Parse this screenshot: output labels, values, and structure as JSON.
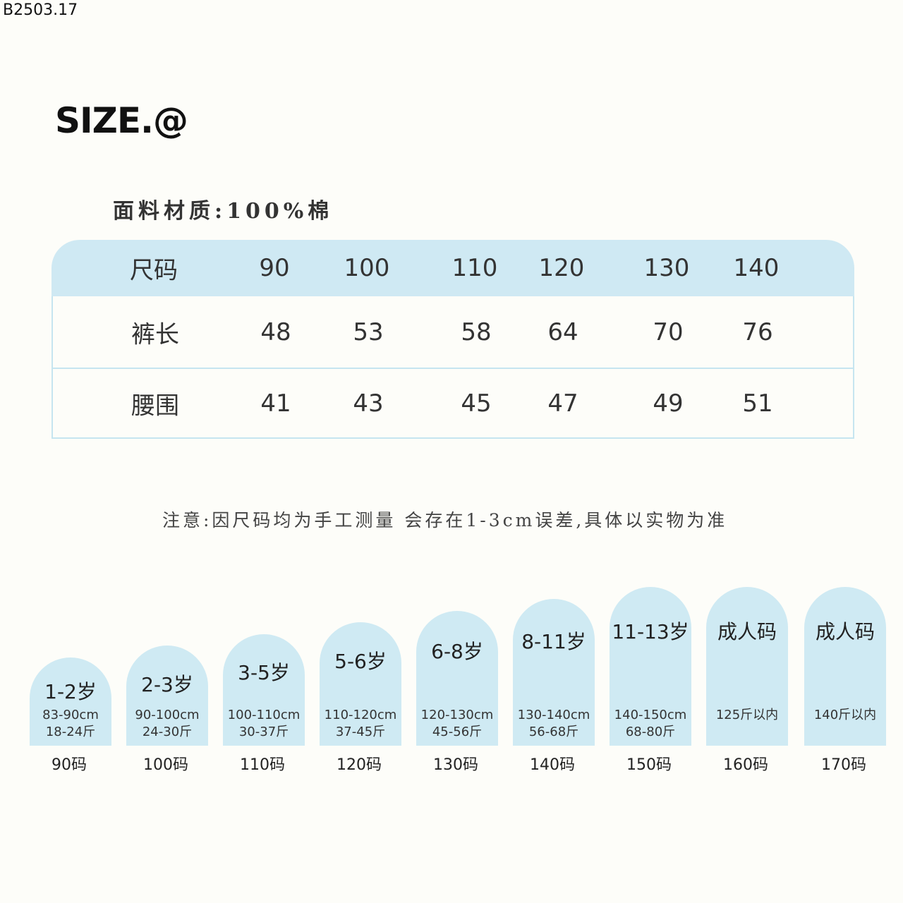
{
  "code": "B2503.17",
  "title": "SIZE.@",
  "material": "面料材质:100%棉",
  "table": {
    "header": [
      "尺码",
      "90",
      "100",
      "110",
      "120",
      "130",
      "140"
    ],
    "rows": [
      [
        "裤长",
        "48",
        "53",
        "58",
        "64",
        "70",
        "76"
      ],
      [
        "腰围",
        "41",
        "43",
        "45",
        "47",
        "49",
        "51"
      ]
    ]
  },
  "note": "注意:因尺码均为手工测量 会存在1-3cm误差,具体以实物为准",
  "cards": [
    {
      "age": "1-2岁",
      "height": "83-90cm",
      "weight": "18-24斤",
      "size": "90码"
    },
    {
      "age": "2-3岁",
      "height": "90-100cm",
      "weight": "24-30斤",
      "size": "100码"
    },
    {
      "age": "3-5岁",
      "height": "100-110cm",
      "weight": "30-37斤",
      "size": "110码"
    },
    {
      "age": "5-6岁",
      "height": "110-120cm",
      "weight": "37-45斤",
      "size": "120码"
    },
    {
      "age": "6-8岁",
      "height": "120-130cm",
      "weight": "45-56斤",
      "size": "130码"
    },
    {
      "age": "8-11岁",
      "height": "130-140cm",
      "weight": "56-68斤",
      "size": "140码"
    },
    {
      "age": "11-13岁",
      "height": "140-150cm",
      "weight": "68-80斤",
      "size": "150码"
    },
    {
      "age": "成人码",
      "height": "125斤以内",
      "weight": "",
      "size": "160码"
    },
    {
      "age": "成人码",
      "height": "140斤以内",
      "weight": "",
      "size": "170码"
    }
  ],
  "colors": {
    "background": "#fdfdf9",
    "accent": "#cfeaf3",
    "border": "#c6e5f0"
  }
}
